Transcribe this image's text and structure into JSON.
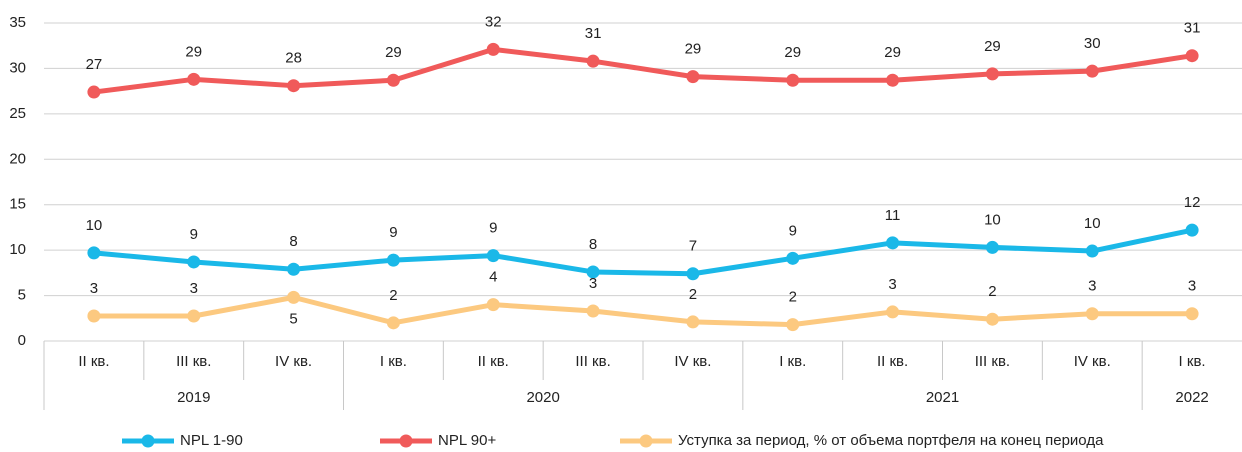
{
  "chart_data": {
    "type": "line",
    "categories": [
      "II кв.",
      "III кв.",
      "IV кв.",
      "I кв.",
      "II кв.",
      "III кв.",
      "IV кв.",
      "I кв.",
      "II кв.",
      "III кв.",
      "IV кв.",
      "I кв."
    ],
    "x_groups": [
      {
        "label": "2019",
        "size": 3
      },
      {
        "label": "2020",
        "size": 4
      },
      {
        "label": "2021",
        "size": 4
      },
      {
        "label": "2022",
        "size": 1
      }
    ],
    "ylim": [
      0,
      35
    ],
    "yticks": [
      0,
      5,
      10,
      15,
      20,
      25,
      30,
      35
    ],
    "grid": true,
    "legend": "bottom",
    "series": [
      {
        "name": "NPL 1-90",
        "color": "#1ab8e8",
        "values": [
          9.7,
          8.7,
          7.9,
          8.9,
          9.4,
          7.6,
          7.4,
          9.1,
          10.8,
          10.3,
          9.9,
          12.2
        ],
        "value_labels": [
          "10",
          "9",
          "8",
          "9",
          "9",
          "8",
          "7",
          "9",
          "11",
          "10",
          "10",
          "12"
        ]
      },
      {
        "name": "NPL 90+",
        "color": "#f05a5a",
        "values": [
          27.4,
          28.8,
          28.1,
          28.7,
          32.1,
          30.8,
          29.1,
          28.7,
          28.7,
          29.4,
          29.7,
          31.4
        ],
        "value_labels": [
          "27",
          "29",
          "28",
          "29",
          "32",
          "31",
          "29",
          "29",
          "29",
          "29",
          "30",
          "31"
        ]
      },
      {
        "name": "Уступка за период, % от объема портфеля на конец периода",
        "color": "#fcc980",
        "values": [
          2.75,
          2.75,
          4.8,
          2.0,
          4.0,
          3.3,
          2.1,
          1.8,
          3.2,
          2.4,
          3.0,
          3.0
        ],
        "value_labels": [
          "3",
          "3",
          "5",
          "2",
          "4",
          "3",
          "2",
          "2",
          "3",
          "2",
          "3",
          "3"
        ]
      }
    ]
  }
}
